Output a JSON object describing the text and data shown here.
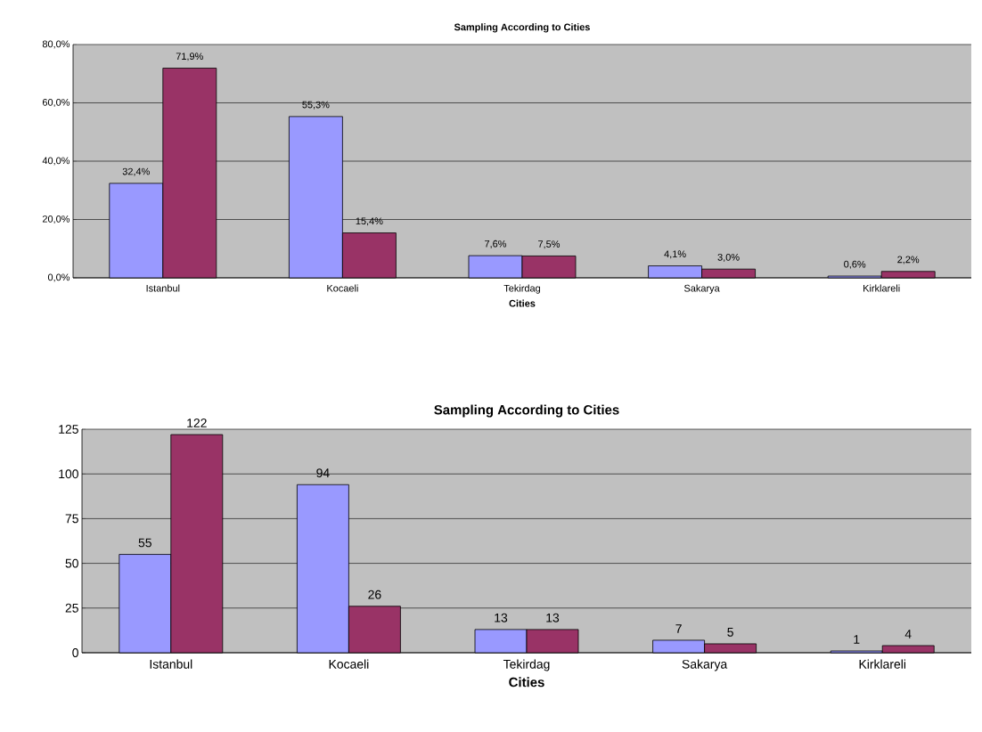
{
  "chart_data": [
    {
      "type": "bar",
      "title": "Sampling According to Cities",
      "xlabel": "Cities",
      "categories": [
        "Istanbul",
        "Kocaeli",
        "Tekirdag",
        "Sakarya",
        "Kirklareli"
      ],
      "series": [
        {
          "color": "#9999ff",
          "values": [
            32.4,
            55.3,
            7.6,
            4.1,
            0.6
          ],
          "value_labels": [
            "32,4%",
            "55,3%",
            "7,6%",
            "4,1%",
            "0,6%"
          ]
        },
        {
          "color": "#993366",
          "values": [
            71.9,
            15.4,
            7.5,
            3.0,
            2.2
          ],
          "value_labels": [
            "71,9%",
            "15,4%",
            "7,5%",
            "3,0%",
            "2,2%"
          ]
        }
      ],
      "ylim": [
        0,
        80
      ],
      "yticks": [
        {
          "value": 0,
          "label": "0,0%"
        },
        {
          "value": 20,
          "label": "20,0%"
        },
        {
          "value": 40,
          "label": "40,0%"
        },
        {
          "value": 60,
          "label": "60,0%"
        },
        {
          "value": 80,
          "label": "80,0%"
        }
      ],
      "grid": "y"
    },
    {
      "type": "bar",
      "title": "Sampling According to Cities",
      "xlabel": "Cities",
      "categories": [
        "Istanbul",
        "Kocaeli",
        "Tekirdag",
        "Sakarya",
        "Kirklareli"
      ],
      "series": [
        {
          "color": "#9999ff",
          "values": [
            55,
            94,
            13,
            7,
            1
          ]
        },
        {
          "color": "#993366",
          "values": [
            122,
            26,
            13,
            5,
            4
          ]
        }
      ],
      "ylim": [
        0,
        125
      ],
      "yticks": [
        0,
        25,
        50,
        75,
        100,
        125
      ],
      "grid": "y",
      "data_labels": true
    }
  ]
}
